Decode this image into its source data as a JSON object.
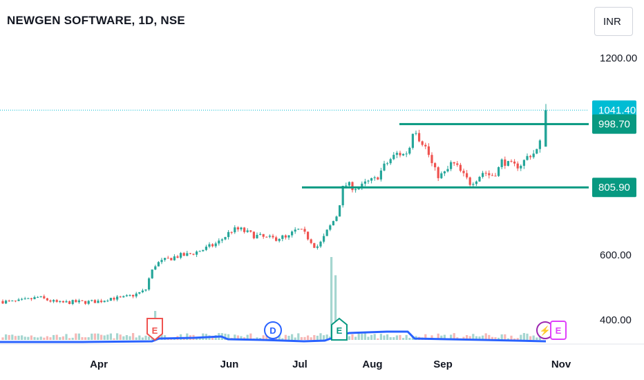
{
  "header": {
    "title": "NEWGEN SOFTWARE, 1D, NSE",
    "currency": "INR"
  },
  "colors": {
    "up": "#26a69a",
    "down": "#ef5350",
    "levels": "#089981",
    "price_badge": "#00bcd4",
    "volume_ma": "#2962ff",
    "volume_up": "#a5d6d0",
    "volume_down": "#f7b7b5",
    "dividend": "#2962ff",
    "split": "#9c27b0",
    "earnings_future": "#e040fb"
  },
  "chart_data": {
    "type": "candlestick",
    "title": "NEWGEN SOFTWARE, 1D, NSE",
    "currency": "INR",
    "y_ticks": [
      "1200.00",
      "600.00",
      "400.00"
    ],
    "x_ticks": [
      "Apr",
      "Jun",
      "Jul",
      "Aug",
      "Sep",
      "Nov"
    ],
    "last_price": {
      "label": "1041.40",
      "value": 1041.4
    },
    "levels": [
      {
        "label": "998.70",
        "value": 998.7
      },
      {
        "label": "805.90",
        "value": 805.9
      }
    ],
    "events": [
      {
        "type": "earnings",
        "letter": "E",
        "month": "Apr"
      },
      {
        "type": "dividend",
        "letter": "D",
        "month": "Jun"
      },
      {
        "type": "earnings",
        "letter": "E",
        "month": "Jul"
      },
      {
        "type": "split",
        "letter": "⚡",
        "month": "Oct"
      },
      {
        "type": "earnings",
        "letter": "E",
        "month": "Oct"
      }
    ],
    "price_path": [
      [
        0,
        458
      ],
      [
        25,
        455
      ],
      [
        45,
        462
      ],
      [
        60,
        470
      ],
      [
        75,
        460
      ],
      [
        90,
        452
      ],
      [
        110,
        455
      ],
      [
        130,
        455
      ],
      [
        150,
        458
      ],
      [
        165,
        468
      ],
      [
        180,
        466
      ],
      [
        200,
        478
      ],
      [
        215,
        490
      ],
      [
        222,
        540
      ],
      [
        230,
        572
      ],
      [
        245,
        585
      ],
      [
        260,
        596
      ],
      [
        275,
        600
      ],
      [
        290,
        610
      ],
      [
        305,
        622
      ],
      [
        320,
        637
      ],
      [
        330,
        656
      ],
      [
        340,
        675
      ],
      [
        352,
        678
      ],
      [
        362,
        668
      ],
      [
        372,
        660
      ],
      [
        382,
        655
      ],
      [
        392,
        650
      ],
      [
        402,
        650
      ],
      [
        412,
        655
      ],
      [
        420,
        648
      ],
      [
        430,
        672
      ],
      [
        438,
        676
      ],
      [
        446,
        662
      ],
      [
        454,
        645
      ],
      [
        462,
        622
      ],
      [
        470,
        640
      ],
      [
        478,
        672
      ],
      [
        486,
        700
      ],
      [
        493,
        725
      ],
      [
        500,
        800
      ],
      [
        505,
        814
      ],
      [
        515,
        808
      ],
      [
        525,
        803
      ],
      [
        535,
        820
      ],
      [
        548,
        830
      ],
      [
        560,
        868
      ],
      [
        570,
        892
      ],
      [
        580,
        910
      ],
      [
        590,
        905
      ],
      [
        597,
        925
      ],
      [
        604,
        1000
      ],
      [
        610,
        960
      ],
      [
        618,
        940
      ],
      [
        625,
        905
      ],
      [
        632,
        862
      ],
      [
        640,
        840
      ],
      [
        650,
        850
      ],
      [
        658,
        880
      ],
      [
        665,
        870
      ],
      [
        675,
        842
      ],
      [
        685,
        820
      ],
      [
        695,
        835
      ],
      [
        705,
        855
      ],
      [
        715,
        840
      ],
      [
        725,
        858
      ],
      [
        732,
        890
      ],
      [
        740,
        875
      ],
      [
        750,
        870
      ],
      [
        760,
        878
      ],
      [
        770,
        905
      ],
      [
        780,
        912
      ],
      [
        786,
        940
      ],
      [
        790,
        1045
      ]
    ],
    "volume_spikes": [
      {
        "x_month": "Apr",
        "offset": 4,
        "relative": 0.35
      },
      {
        "x_month": "Jul",
        "offset": 12,
        "relative": 1.0
      },
      {
        "x_month": "Jul",
        "offset": 6,
        "relative": 0.78
      }
    ]
  }
}
